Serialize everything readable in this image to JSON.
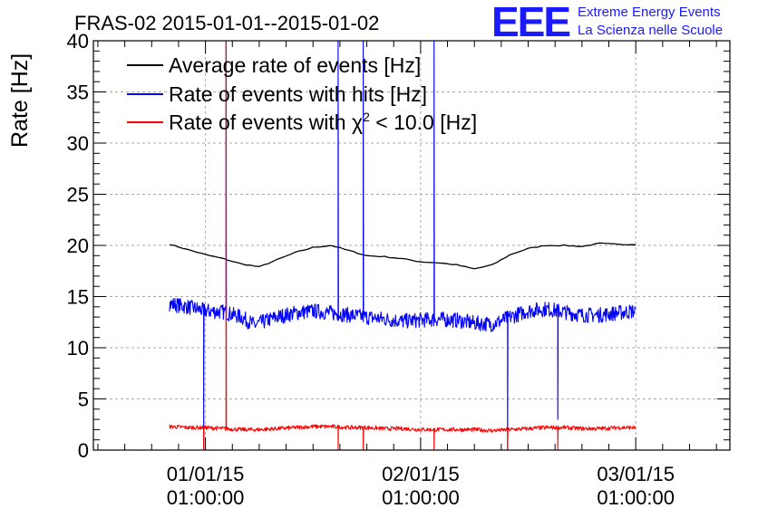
{
  "header": {
    "title": "FRAS-02 2015-01-01--2015-01-02",
    "logo_text": "EEE",
    "logo_line1": "Extreme Energy Events",
    "logo_line2": "La Scienza nelle Scuole"
  },
  "chart_data": {
    "type": "line",
    "title": "FRAS-02 2015-01-01--2015-01-02",
    "xlabel": "",
    "ylabel": "Rate [Hz]",
    "ylim": [
      0,
      40
    ],
    "xlim_hours": [
      -12.5,
      58.5
    ],
    "grid": true,
    "legend_position": "top-left",
    "y_ticks": [
      0,
      5,
      10,
      15,
      20,
      25,
      30,
      35,
      40
    ],
    "x_ticks": [
      {
        "hour": 0,
        "line1": "01/01/15",
        "line2": "01:00:00"
      },
      {
        "hour": 24,
        "line1": "02/01/15",
        "line2": "01:00:00"
      },
      {
        "hour": 48,
        "line1": "03/01/15",
        "line2": "01:00:00"
      }
    ],
    "series": [
      {
        "name": "Average rate of events [Hz]",
        "color": "#000000",
        "x": [
          -4,
          -2,
          0,
          2,
          4,
          6,
          8,
          10,
          12,
          14,
          16,
          18,
          20,
          22,
          24,
          26,
          28,
          30,
          32,
          34,
          36,
          38,
          40,
          42,
          44,
          46,
          48
        ],
        "y": [
          20.1,
          19.6,
          19.1,
          18.7,
          18.2,
          17.9,
          18.6,
          19.3,
          19.8,
          20.0,
          19.5,
          19.0,
          18.9,
          18.7,
          18.4,
          18.3,
          18.1,
          17.7,
          18.1,
          19.1,
          19.7,
          20.0,
          20.0,
          19.9,
          20.2,
          20.1,
          20.1
        ]
      },
      {
        "name": "Rate of events with hits [Hz]",
        "color": "#0000ff",
        "x": [
          -4,
          -2,
          0,
          2,
          4,
          5.5,
          6,
          8,
          10,
          12,
          14,
          16,
          18,
          20,
          22,
          24,
          26,
          28,
          30,
          32,
          34,
          36,
          38,
          40,
          42,
          44,
          46,
          48
        ],
        "y": [
          14.3,
          14.0,
          13.6,
          13.5,
          13.0,
          12.2,
          12.4,
          13.0,
          13.4,
          13.6,
          13.4,
          13.2,
          13.0,
          12.8,
          12.6,
          12.7,
          12.8,
          12.7,
          12.4,
          12.3,
          13.0,
          13.6,
          13.8,
          13.5,
          13.2,
          13.2,
          13.4,
          13.6
        ],
        "spikes": [
          {
            "hour": -0.2,
            "value": 0
          },
          {
            "hour": 2.3,
            "value": 40
          },
          {
            "hour": 14.8,
            "value": 40
          },
          {
            "hour": 17.6,
            "value": 40
          },
          {
            "hour": 25.5,
            "value": 40
          },
          {
            "hour": 33.7,
            "value": 0
          },
          {
            "hour": 39.3,
            "value": 3
          }
        ]
      },
      {
        "name": "Rate of events with χ² < 10.0 [Hz]",
        "color": "#ff0000",
        "x": [
          -4,
          -2,
          0,
          2,
          4,
          6,
          8,
          10,
          12,
          14,
          16,
          18,
          20,
          22,
          24,
          26,
          28,
          30,
          32,
          34,
          36,
          38,
          40,
          42,
          44,
          46,
          48
        ],
        "y": [
          2.3,
          2.2,
          2.2,
          2.1,
          2.0,
          2.0,
          2.1,
          2.2,
          2.3,
          2.3,
          2.2,
          2.2,
          2.1,
          2.1,
          2.0,
          2.0,
          2.0,
          2.0,
          1.9,
          2.0,
          2.1,
          2.2,
          2.2,
          2.1,
          2.1,
          2.2,
          2.2
        ],
        "spikes": [
          {
            "hour": -0.2,
            "value": 0
          },
          {
            "hour": 2.3,
            "value": 40
          },
          {
            "hour": 14.8,
            "value": 0
          },
          {
            "hour": 17.6,
            "value": 0
          },
          {
            "hour": 25.5,
            "value": 0
          },
          {
            "hour": 33.7,
            "value": 0
          },
          {
            "hour": 39.3,
            "value": 0
          }
        ]
      }
    ]
  },
  "legend": {
    "items": [
      {
        "label": "Average rate of events [Hz]",
        "color": "#000000"
      },
      {
        "label": "Rate of events with hits [Hz]",
        "color": "#0000ff"
      },
      {
        "label_prefix": "Rate of events with ",
        "symbol": "χ",
        "sup": "2",
        "label_suffix": " < 10.0 [Hz]",
        "color": "#ff0000"
      }
    ]
  }
}
